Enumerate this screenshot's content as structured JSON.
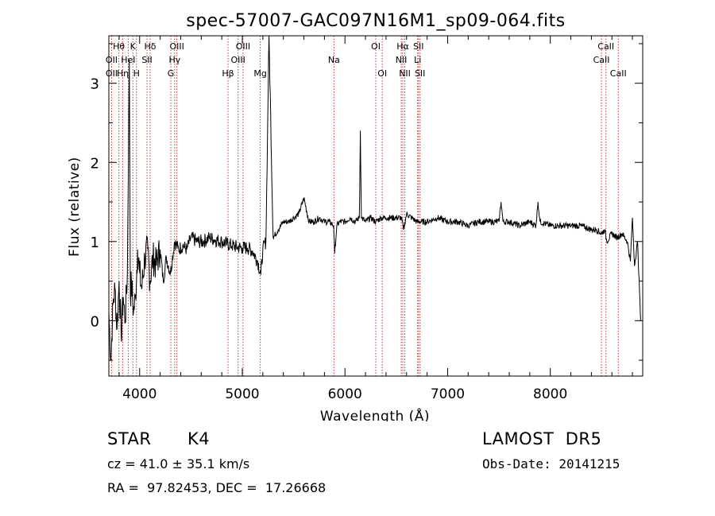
{
  "chart_data": {
    "type": "line",
    "title": "spec-57007-GAC097N16M1_sp09-064.fits",
    "xlabel": "Wavelength (Å)",
    "ylabel": "Flux (relative)",
    "xlim": [
      3700,
      8900
    ],
    "ylim": [
      -0.7,
      3.6
    ],
    "xticks": [
      4000,
      5000,
      6000,
      7000,
      8000
    ],
    "yticks": [
      0,
      1,
      2,
      3
    ],
    "grid": false,
    "line_color": "#000000",
    "line_marker_color": "#cc3333",
    "spectrum": {
      "x": [
        3700,
        3720,
        3740,
        3760,
        3780,
        3800,
        3820,
        3840,
        3860,
        3880,
        3900,
        3910,
        3920,
        3940,
        3960,
        3980,
        4000,
        4020,
        4050,
        4080,
        4100,
        4130,
        4160,
        4200,
        4230,
        4260,
        4300,
        4340,
        4380,
        4420,
        4460,
        4500,
        4560,
        4620,
        4680,
        4740,
        4800,
        4850,
        4900,
        4950,
        5000,
        5050,
        5100,
        5150,
        5180,
        5200,
        5230,
        5260,
        5300,
        5350,
        5400,
        5450,
        5500,
        5550,
        5600,
        5650,
        5700,
        5750,
        5800,
        5850,
        5890,
        5900,
        5920,
        5950,
        6000,
        6050,
        6100,
        6140,
        6150,
        6160,
        6200,
        6250,
        6300,
        6350,
        6400,
        6450,
        6500,
        6550,
        6570,
        6600,
        6650,
        6700,
        6800,
        6900,
        7000,
        7100,
        7200,
        7300,
        7400,
        7500,
        7520,
        7540,
        7600,
        7700,
        7800,
        7860,
        7880,
        7900,
        8000,
        8100,
        8200,
        8300,
        8400,
        8450,
        8500,
        8530,
        8550,
        8600,
        8650,
        8700,
        8750,
        8780,
        8800,
        8820,
        8850,
        8880
      ],
      "y": [
        0.1,
        -0.5,
        0.2,
        0.4,
        -0.1,
        0.5,
        -0.2,
        0.3,
        0.0,
        0.6,
        3.3,
        0.3,
        0.5,
        0.1,
        0.3,
        0.9,
        0.6,
        0.4,
        0.8,
        0.9,
        0.5,
        0.8,
        0.7,
        0.9,
        0.5,
        0.8,
        0.6,
        1.0,
        0.9,
        0.95,
        0.9,
        1.05,
        1.0,
        1.0,
        1.05,
        1.02,
        1.0,
        0.97,
        0.95,
        0.93,
        0.92,
        0.92,
        0.88,
        0.75,
        0.58,
        0.9,
        1.0,
        3.6,
        1.05,
        1.15,
        1.25,
        1.25,
        1.3,
        1.35,
        1.55,
        1.25,
        1.25,
        1.3,
        1.25,
        1.25,
        1.2,
        0.85,
        1.2,
        1.25,
        1.25,
        1.3,
        1.25,
        1.3,
        2.4,
        1.3,
        1.25,
        1.3,
        1.25,
        1.3,
        1.3,
        1.3,
        1.3,
        1.3,
        1.15,
        1.35,
        1.3,
        1.25,
        1.25,
        1.3,
        1.25,
        1.25,
        1.2,
        1.25,
        1.25,
        1.25,
        1.5,
        1.25,
        1.25,
        1.2,
        1.25,
        1.2,
        1.5,
        1.25,
        1.2,
        1.2,
        1.2,
        1.2,
        1.15,
        1.15,
        1.1,
        1.15,
        1.0,
        1.1,
        1.05,
        1.1,
        1.0,
        0.75,
        1.3,
        0.7,
        1.0,
        0.0
      ]
    },
    "lines": [
      {
        "name": "Hθ",
        "x": 3798,
        "row": 1
      },
      {
        "name": "OII",
        "x": 3727,
        "row": 2
      },
      {
        "name": "OII",
        "x": 3727,
        "row": 3
      },
      {
        "name": "Hη",
        "x": 3835,
        "row": 3
      },
      {
        "name": "K",
        "x": 3934,
        "row": 1
      },
      {
        "name": "HeI",
        "x": 3889,
        "row": 2
      },
      {
        "name": "H",
        "x": 3969,
        "row": 3
      },
      {
        "name": "Hδ",
        "x": 4102,
        "row": 1
      },
      {
        "name": "SII",
        "x": 4072,
        "row": 2
      },
      {
        "name": "OIII",
        "x": 4363,
        "row": 1
      },
      {
        "name": "Hγ",
        "x": 4341,
        "row": 2
      },
      {
        "name": "G",
        "x": 4304,
        "row": 3
      },
      {
        "name": "OIII",
        "x": 5007,
        "row": 1
      },
      {
        "name": "OIII",
        "x": 4959,
        "row": 2
      },
      {
        "name": "Hβ",
        "x": 4861,
        "row": 3
      },
      {
        "name": "Mg",
        "x": 5175,
        "row": 3
      },
      {
        "name": "Na",
        "x": 5893,
        "row": 2
      },
      {
        "name": "OI",
        "x": 6300,
        "row": 1
      },
      {
        "name": "OI",
        "x": 6363,
        "row": 3
      },
      {
        "name": "Hα",
        "x": 6563,
        "row": 1
      },
      {
        "name": "NII",
        "x": 6548,
        "row": 2
      },
      {
        "name": "NII",
        "x": 6583,
        "row": 3
      },
      {
        "name": "SII",
        "x": 6716,
        "row": 1
      },
      {
        "name": "Li",
        "x": 6708,
        "row": 2
      },
      {
        "name": "SII",
        "x": 6731,
        "row": 3
      },
      {
        "name": "CaII",
        "x": 8542,
        "row": 1
      },
      {
        "name": "CaII",
        "x": 8498,
        "row": 2
      },
      {
        "name": "CaII",
        "x": 8662,
        "row": 3
      }
    ]
  },
  "info": {
    "class": "STAR",
    "subclass": "K4",
    "survey": "LAMOST  DR5",
    "redshift": "cz = 41.0 ± 35.1 km/s",
    "obs_date": "Obs-Date: 20141215",
    "coords": "RA =  97.82453, DEC =  17.26668"
  }
}
